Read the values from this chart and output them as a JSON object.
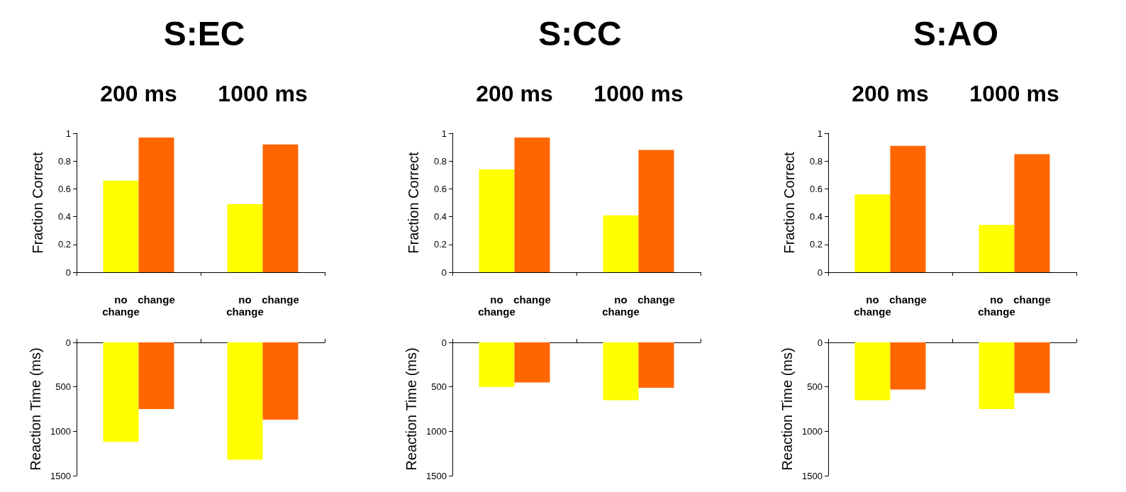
{
  "chart_data": [
    {
      "type": "bar",
      "title": "S:EC",
      "ylabel": "Fraction Correct",
      "categories": [
        "200 ms",
        "1000 ms"
      ],
      "ylim": [
        0,
        1
      ],
      "yticks": [
        0,
        0.2,
        0.4,
        0.6,
        0.8,
        1
      ],
      "series": [
        {
          "name": "no change",
          "color": "#ffff00",
          "values": [
            0.66,
            0.49
          ]
        },
        {
          "name": "change",
          "color": "#ff6600",
          "values": [
            0.97,
            0.92
          ]
        }
      ]
    },
    {
      "type": "bar",
      "title": "S:CC",
      "ylabel": "Fraction Correct",
      "categories": [
        "200 ms",
        "1000 ms"
      ],
      "ylim": [
        0,
        1
      ],
      "yticks": [
        0,
        0.2,
        0.4,
        0.6,
        0.8,
        1
      ],
      "series": [
        {
          "name": "no change",
          "color": "#ffff00",
          "values": [
            0.74,
            0.41
          ]
        },
        {
          "name": "change",
          "color": "#ff6600",
          "values": [
            0.97,
            0.88
          ]
        }
      ]
    },
    {
      "type": "bar",
      "title": "S:AO",
      "ylabel": "Fraction Correct",
      "categories": [
        "200 ms",
        "1000 ms"
      ],
      "ylim": [
        0,
        1
      ],
      "yticks": [
        0,
        0.2,
        0.4,
        0.6,
        0.8,
        1
      ],
      "series": [
        {
          "name": "no change",
          "color": "#ffff00",
          "values": [
            0.56,
            0.34
          ]
        },
        {
          "name": "change",
          "color": "#ff6600",
          "values": [
            0.91,
            0.85
          ]
        }
      ]
    },
    {
      "type": "bar",
      "ylabel": "Reaction Time (ms)",
      "categories": [
        null,
        null
      ],
      "ylim": [
        1500,
        0
      ],
      "yticks": [
        0,
        500,
        1000,
        1500
      ],
      "tick_labels": "y",
      "series": [
        {
          "color": "#ffff00",
          "values": [
            1120,
            1320
          ]
        },
        {
          "color": "#ff6600",
          "values": [
            750,
            870
          ]
        }
      ]
    },
    {
      "type": "bar",
      "ylabel": "Reaction Time (ms)",
      "categories": [
        null,
        null
      ],
      "ylim": [
        1500,
        0
      ],
      "yticks": [
        0,
        500,
        1000,
        1500
      ],
      "tick_labels": "y",
      "series": [
        {
          "color": "#ffff00",
          "values": [
            500,
            650
          ]
        },
        {
          "color": "#ff6600",
          "values": [
            450,
            510
          ]
        }
      ]
    },
    {
      "type": "bar",
      "ylabel": "Reaction Time (ms)",
      "categories": [
        null,
        null
      ],
      "ylim": [
        1500,
        0
      ],
      "yticks": [
        0,
        500,
        1000,
        1500
      ],
      "tick_labels": "y",
      "series": [
        {
          "color": "#ffff00",
          "values": [
            650,
            750
          ]
        },
        {
          "color": "#ff6600",
          "values": [
            530,
            570
          ]
        }
      ]
    }
  ]
}
